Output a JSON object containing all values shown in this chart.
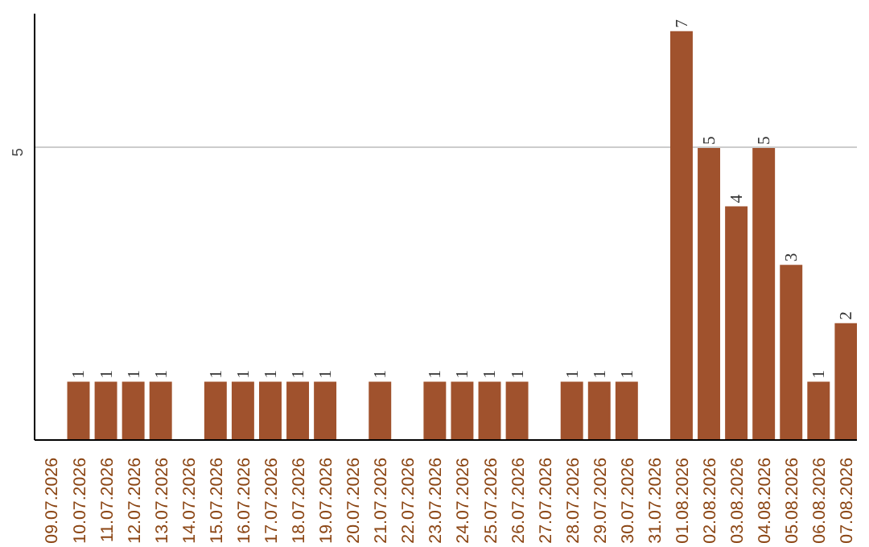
{
  "chart_data": {
    "type": "bar",
    "categories": [
      "09.07.2026",
      "10.07.2026",
      "11.07.2026",
      "12.07.2026",
      "13.07.2026",
      "14.07.2026",
      "15.07.2026",
      "16.07.2026",
      "17.07.2026",
      "18.07.2026",
      "19.07.2026",
      "20.07.2026",
      "21.07.2026",
      "22.07.2026",
      "23.07.2026",
      "24.07.2026",
      "25.07.2026",
      "26.07.2026",
      "27.07.2026",
      "28.07.2026",
      "29.07.2026",
      "30.07.2026",
      "31.07.2026",
      "01.08.2026",
      "02.08.2026",
      "03.08.2026",
      "04.08.2026",
      "05.08.2026",
      "06.08.2026",
      "07.08.2026"
    ],
    "values": [
      null,
      1,
      1,
      1,
      1,
      null,
      1,
      1,
      1,
      1,
      1,
      null,
      1,
      null,
      1,
      1,
      1,
      1,
      null,
      1,
      1,
      1,
      null,
      7,
      5,
      4,
      5,
      3,
      1,
      2
    ],
    "color": "#a0522d",
    "ylim": [
      0,
      7.3
    ],
    "yticks": [
      5
    ],
    "grid": "y",
    "data_labels": true
  }
}
